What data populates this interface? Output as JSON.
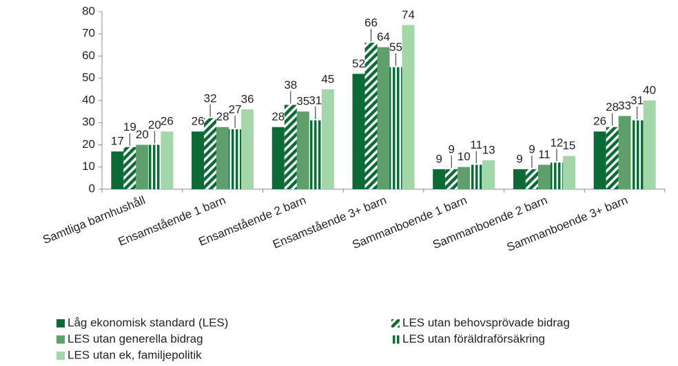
{
  "chart_data": {
    "type": "bar",
    "categories": [
      "Samtliga barnhushåll",
      "Ensamstående 1 barn",
      "Ensamstående 2 barn",
      "Ensamstående 3+ barn",
      "Sammanboende 1 barn",
      "Sammanboende 2 barn",
      "Sammanboende 3+ barn"
    ],
    "series": [
      {
        "name": "Låg ekonomisk standard (LES)",
        "color": "#0b6a36",
        "pattern": "solid",
        "values": [
          17,
          26,
          28,
          52,
          9,
          9,
          26
        ]
      },
      {
        "name": "LES utan behovsprövade bidrag",
        "color": "#0b6a36",
        "pattern": "diagonal",
        "values": [
          19,
          32,
          38,
          66,
          9,
          9,
          28
        ]
      },
      {
        "name": "LES utan generella bidrag",
        "color": "#5e9f6c",
        "pattern": "solid",
        "values": [
          20,
          28,
          35,
          64,
          10,
          11,
          33
        ]
      },
      {
        "name": "LES utan föräldraförsäkring",
        "color": "#0b6a36",
        "pattern": "vertical",
        "values": [
          20,
          27,
          31,
          55,
          11,
          12,
          31
        ]
      },
      {
        "name": "LES utan ek, familjepolitik",
        "color": "#a3d6a8",
        "pattern": "solid",
        "values": [
          26,
          36,
          45,
          74,
          13,
          15,
          40
        ]
      }
    ],
    "ylim": [
      0,
      80
    ],
    "yticks": [
      0,
      10,
      20,
      30,
      40,
      50,
      60,
      70,
      80
    ],
    "grid": false
  }
}
